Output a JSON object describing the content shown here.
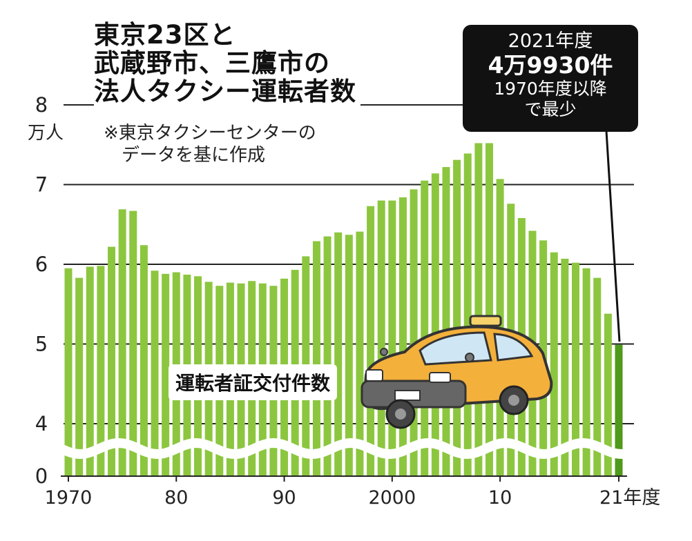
{
  "title_lines": [
    "東京23区と",
    "武蔵野市、三鷹市の",
    "法人タクシー運転者数"
  ],
  "note_lines": [
    "※東京タクシーセンターの",
    "データを基に作成"
  ],
  "unit_label": "万人",
  "callout": {
    "year": "2021年度",
    "value": "4万9930件",
    "line3": "1970年度以降",
    "line4": "で最少"
  },
  "series_label": "運転者証交付件数",
  "icons": {
    "taxi": "taxi-car-icon"
  },
  "colors": {
    "bar": "#8cc63f",
    "bar_highlight": "#4f9a1a",
    "callout_bg": "#111111"
  },
  "chart_data": {
    "type": "bar",
    "title": "法人タクシー運転者数",
    "ylabel": "万人",
    "xlabel": "",
    "y_ticks": [
      "0",
      "4",
      "5",
      "6",
      "7",
      "8"
    ],
    "y_axis_break": [
      0,
      3.5
    ],
    "ylim": [
      3.5,
      8
    ],
    "x_tick_labels": [
      {
        "year": 1970,
        "label": "1970"
      },
      {
        "year": 1980,
        "label": "80"
      },
      {
        "year": 1990,
        "label": "90"
      },
      {
        "year": 2000,
        "label": "2000"
      },
      {
        "year": 2010,
        "label": "10"
      },
      {
        "year": 2021,
        "label": "21年度"
      }
    ],
    "categories": [
      1970,
      1971,
      1972,
      1973,
      1974,
      1975,
      1976,
      1977,
      1978,
      1979,
      1980,
      1981,
      1982,
      1983,
      1984,
      1985,
      1986,
      1987,
      1988,
      1989,
      1990,
      1991,
      1992,
      1993,
      1994,
      1995,
      1996,
      1997,
      1998,
      1999,
      2000,
      2001,
      2002,
      2003,
      2004,
      2005,
      2006,
      2007,
      2008,
      2009,
      2010,
      2011,
      2012,
      2013,
      2014,
      2015,
      2016,
      2017,
      2018,
      2019,
      2020,
      2021
    ],
    "values": [
      5.95,
      5.83,
      5.97,
      5.98,
      6.22,
      6.69,
      6.67,
      6.24,
      5.92,
      5.88,
      5.9,
      5.87,
      5.85,
      5.78,
      5.73,
      5.77,
      5.76,
      5.79,
      5.76,
      5.73,
      5.82,
      5.93,
      6.1,
      6.29,
      6.35,
      6.4,
      6.37,
      6.41,
      6.73,
      6.8,
      6.8,
      6.84,
      6.94,
      7.05,
      7.14,
      7.22,
      7.31,
      7.39,
      7.52,
      7.52,
      7.07,
      6.76,
      6.58,
      6.42,
      6.3,
      6.15,
      6.07,
      6.02,
      5.95,
      5.83,
      5.38,
      4.99
    ],
    "highlight_index": 51,
    "grid": true,
    "legend": "none"
  }
}
